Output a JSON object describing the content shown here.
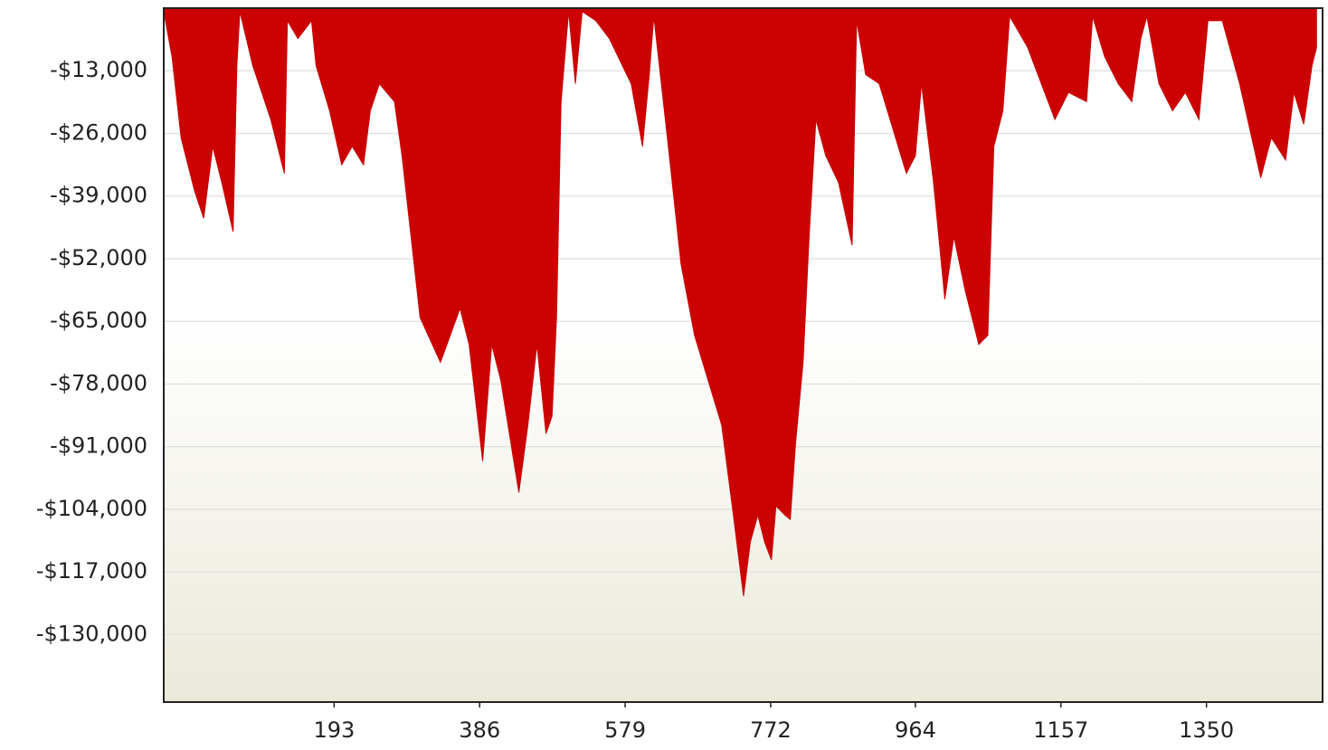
{
  "chart_data": {
    "type": "area",
    "color": "#cc0000",
    "grid": true,
    "xlim": [
      -33,
      1504
    ],
    "ylim": [
      -144000,
      0
    ],
    "xticks": [
      193,
      386,
      579,
      772,
      964,
      1157,
      1350
    ],
    "yticks": [
      {
        "value": -13000,
        "label": "-$13,000"
      },
      {
        "value": -26000,
        "label": "-$26,000"
      },
      {
        "value": -39000,
        "label": "-$39,000"
      },
      {
        "value": -52000,
        "label": "-$52,000"
      },
      {
        "value": -65000,
        "label": "-$65,000"
      },
      {
        "value": -78000,
        "label": "-$78,000"
      },
      {
        "value": -91000,
        "label": "-$91,000"
      },
      {
        "value": -104000,
        "label": "-$104,000"
      },
      {
        "value": -117000,
        "label": "-$117,000"
      },
      {
        "value": -130000,
        "label": "-$130,000"
      }
    ],
    "x": [
      -33,
      -22,
      -10,
      8,
      20,
      32,
      44,
      59,
      64,
      68,
      85,
      109,
      127,
      131,
      145,
      163,
      169,
      187,
      203,
      217,
      232,
      241,
      253,
      273,
      283,
      295,
      307,
      334,
      360,
      372,
      390,
      402,
      414,
      438,
      450,
      462,
      474,
      482,
      488,
      494,
      504,
      513,
      522,
      540,
      558,
      587,
      602,
      611,
      617,
      635,
      653,
      671,
      689,
      707,
      721,
      736,
      745,
      755,
      764,
      773,
      779,
      791,
      798,
      805,
      815,
      823,
      832,
      845,
      862,
      880,
      886,
      898,
      916,
      934,
      952,
      964,
      972,
      988,
      1003,
      1015,
      1030,
      1048,
      1060,
      1068,
      1080,
      1089,
      1113,
      1131,
      1149,
      1167,
      1191,
      1199,
      1215,
      1233,
      1251,
      1263,
      1271,
      1287,
      1305,
      1322,
      1340,
      1352,
      1371,
      1394,
      1422,
      1436,
      1455,
      1466,
      1479,
      1490,
      1496
    ],
    "values": [
      -700,
      -10100,
      -26900,
      -38000,
      -43600,
      -28700,
      -36200,
      -46400,
      -11900,
      -700,
      -11900,
      -23100,
      -34300,
      -2600,
      -6300,
      -2600,
      -11900,
      -21300,
      -32500,
      -28700,
      -32500,
      -21300,
      -15700,
      -19400,
      -30600,
      -47400,
      -64200,
      -73500,
      -62300,
      -69800,
      -94000,
      -69800,
      -77200,
      -100500,
      -86500,
      -69800,
      -88300,
      -84700,
      -64200,
      -19400,
      -700,
      -15700,
      -700,
      -2600,
      -6300,
      -15700,
      -28700,
      -13800,
      -1700,
      -26900,
      -53000,
      -67900,
      -77200,
      -86500,
      -103300,
      -122000,
      -110800,
      -105200,
      -110800,
      -114500,
      -103300,
      -105200,
      -106100,
      -90300,
      -73500,
      -47400,
      -23100,
      -30600,
      -36200,
      -49200,
      -2600,
      -13800,
      -15700,
      -25000,
      -34300,
      -30600,
      -15700,
      -36200,
      -60400,
      -47400,
      -58600,
      -69800,
      -67900,
      -28700,
      -21300,
      -1700,
      -8200,
      -15700,
      -23100,
      -17500,
      -19400,
      -1700,
      -10100,
      -15700,
      -19400,
      -6300,
      -1700,
      -15700,
      -21300,
      -17500,
      -23100,
      -2600,
      -2600,
      -15700,
      -35200,
      -26900,
      -31500,
      -17500,
      -24100,
      -11900,
      -8200
    ]
  }
}
